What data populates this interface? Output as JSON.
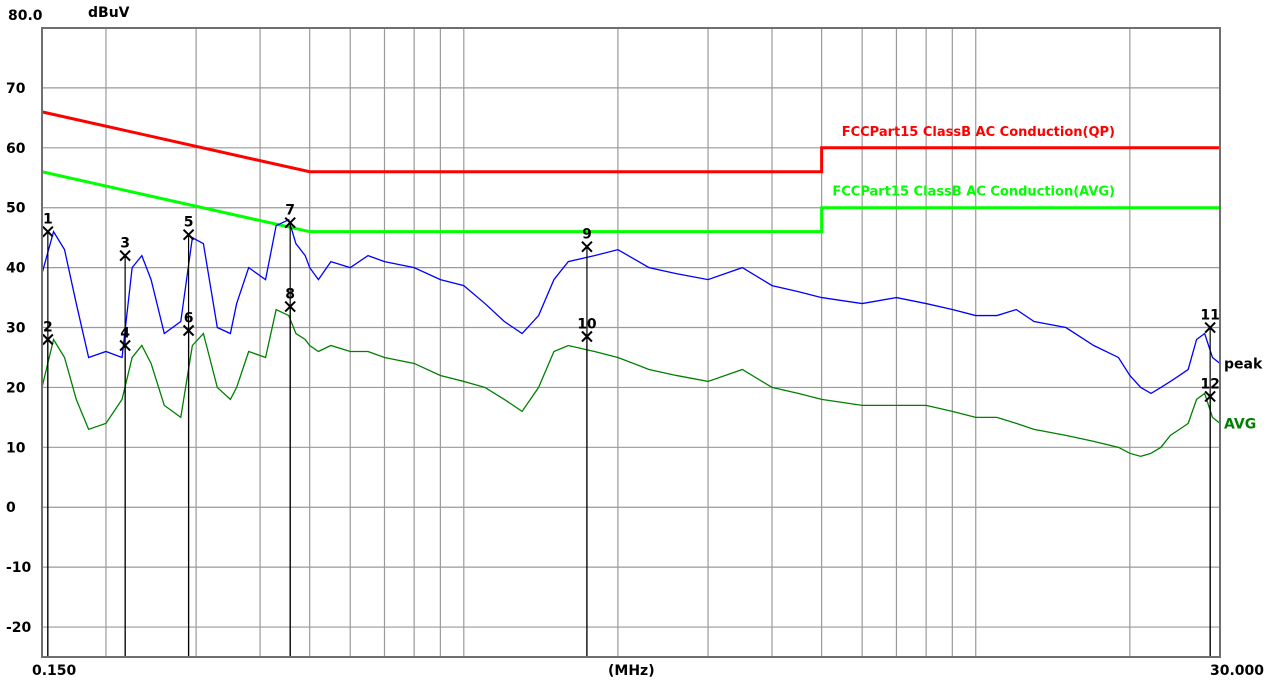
{
  "chart_data": {
    "type": "line",
    "title": "",
    "ylabel": "dBuV",
    "xlabel": "(MHz)",
    "x_scale": "log",
    "xlim": [
      0.15,
      30.0
    ],
    "ylim": [
      -25,
      80
    ],
    "x_start_label": "0.150",
    "x_end_label": "30.000",
    "y_top_label": "80.0",
    "y_tick_labels": [
      "70",
      "60",
      "50",
      "40",
      "30",
      "20",
      "10",
      "0",
      "-10",
      "-20"
    ],
    "grid": true,
    "limit_lines": [
      {
        "name": "FCCPart15 ClassB AC Conduction(QP)",
        "color": "#ff0000",
        "points": [
          [
            0.15,
            66
          ],
          [
            0.5,
            56
          ],
          [
            5.0,
            56
          ],
          [
            5.0,
            60
          ],
          [
            30.0,
            60
          ]
        ]
      },
      {
        "name": "FCCPart15 ClassB AC Conduction(AVG)",
        "color": "#00ff00",
        "points": [
          [
            0.15,
            56
          ],
          [
            0.5,
            46
          ],
          [
            5.0,
            46
          ],
          [
            5.0,
            50
          ],
          [
            30.0,
            50
          ]
        ]
      }
    ],
    "series": [
      {
        "name": "peak",
        "color": "#0000ff",
        "x": [
          0.15,
          0.158,
          0.166,
          0.175,
          0.185,
          0.2,
          0.215,
          0.225,
          0.235,
          0.245,
          0.26,
          0.28,
          0.295,
          0.31,
          0.33,
          0.35,
          0.36,
          0.38,
          0.41,
          0.43,
          0.455,
          0.47,
          0.49,
          0.5,
          0.52,
          0.55,
          0.6,
          0.65,
          0.7,
          0.8,
          0.9,
          1.0,
          1.1,
          1.2,
          1.3,
          1.4,
          1.5,
          1.6,
          1.8,
          2.0,
          2.3,
          2.6,
          3.0,
          3.5,
          4.0,
          4.5,
          5.0,
          6.0,
          7.0,
          8.0,
          9.0,
          10.0,
          11.0,
          12.0,
          13.0,
          15.0,
          17.0,
          19.0,
          20.0,
          21.0,
          22.0,
          23.0,
          24.0,
          25.0,
          26.0,
          27.0,
          28.0,
          29.0,
          30.0
        ],
        "values": [
          39,
          46,
          43,
          34,
          25,
          26,
          25,
          40,
          42,
          38,
          29,
          31,
          45,
          44,
          30,
          29,
          34,
          40,
          38,
          47,
          48,
          44,
          42,
          40,
          38,
          41,
          40,
          42,
          41,
          40,
          38,
          37,
          34,
          31,
          29,
          32,
          38,
          41,
          42,
          43,
          40,
          39,
          38,
          40,
          37,
          36,
          35,
          34,
          35,
          34,
          33,
          32,
          32,
          33,
          31,
          30,
          27,
          25,
          22,
          20,
          19,
          20,
          21,
          22,
          23,
          28,
          29,
          25,
          24
        ]
      },
      {
        "name": "AVG",
        "color": "#008000",
        "x": [
          0.15,
          0.158,
          0.166,
          0.175,
          0.185,
          0.2,
          0.215,
          0.225,
          0.235,
          0.245,
          0.26,
          0.28,
          0.295,
          0.31,
          0.33,
          0.35,
          0.36,
          0.38,
          0.41,
          0.43,
          0.455,
          0.47,
          0.49,
          0.5,
          0.52,
          0.55,
          0.6,
          0.65,
          0.7,
          0.8,
          0.9,
          1.0,
          1.1,
          1.2,
          1.3,
          1.4,
          1.5,
          1.6,
          1.8,
          2.0,
          2.3,
          2.6,
          3.0,
          3.5,
          4.0,
          4.5,
          5.0,
          6.0,
          7.0,
          8.0,
          9.0,
          10.0,
          11.0,
          12.0,
          13.0,
          15.0,
          17.0,
          19.0,
          20.0,
          21.0,
          22.0,
          23.0,
          24.0,
          25.0,
          26.0,
          27.0,
          28.0,
          29.0,
          30.0
        ],
        "values": [
          20,
          28,
          25,
          18,
          13,
          14,
          18,
          25,
          27,
          24,
          17,
          15,
          27,
          29,
          20,
          18,
          20,
          26,
          25,
          33,
          32,
          29,
          28,
          27,
          26,
          27,
          26,
          26,
          25,
          24,
          22,
          21,
          20,
          18,
          16,
          20,
          26,
          27,
          26,
          25,
          23,
          22,
          21,
          23,
          20,
          19,
          18,
          17,
          17,
          17,
          16,
          15,
          15,
          14,
          13,
          12,
          11,
          10,
          9,
          8.5,
          9,
          10,
          12,
          13,
          14,
          18,
          19,
          15,
          14
        ]
      }
    ],
    "markers": [
      {
        "label": "1",
        "x": 0.154,
        "y": 46
      },
      {
        "label": "2",
        "x": 0.154,
        "y": 28
      },
      {
        "label": "3",
        "x": 0.218,
        "y": 42
      },
      {
        "label": "4",
        "x": 0.218,
        "y": 27
      },
      {
        "label": "5",
        "x": 0.29,
        "y": 45.5
      },
      {
        "label": "6",
        "x": 0.29,
        "y": 29.5
      },
      {
        "label": "7",
        "x": 0.458,
        "y": 47.5
      },
      {
        "label": "8",
        "x": 0.458,
        "y": 33.5
      },
      {
        "label": "9",
        "x": 1.74,
        "y": 43.5
      },
      {
        "label": "10",
        "x": 1.74,
        "y": 28.5
      },
      {
        "label": "11",
        "x": 28.7,
        "y": 30
      },
      {
        "label": "12",
        "x": 28.7,
        "y": 18.5
      }
    ]
  }
}
